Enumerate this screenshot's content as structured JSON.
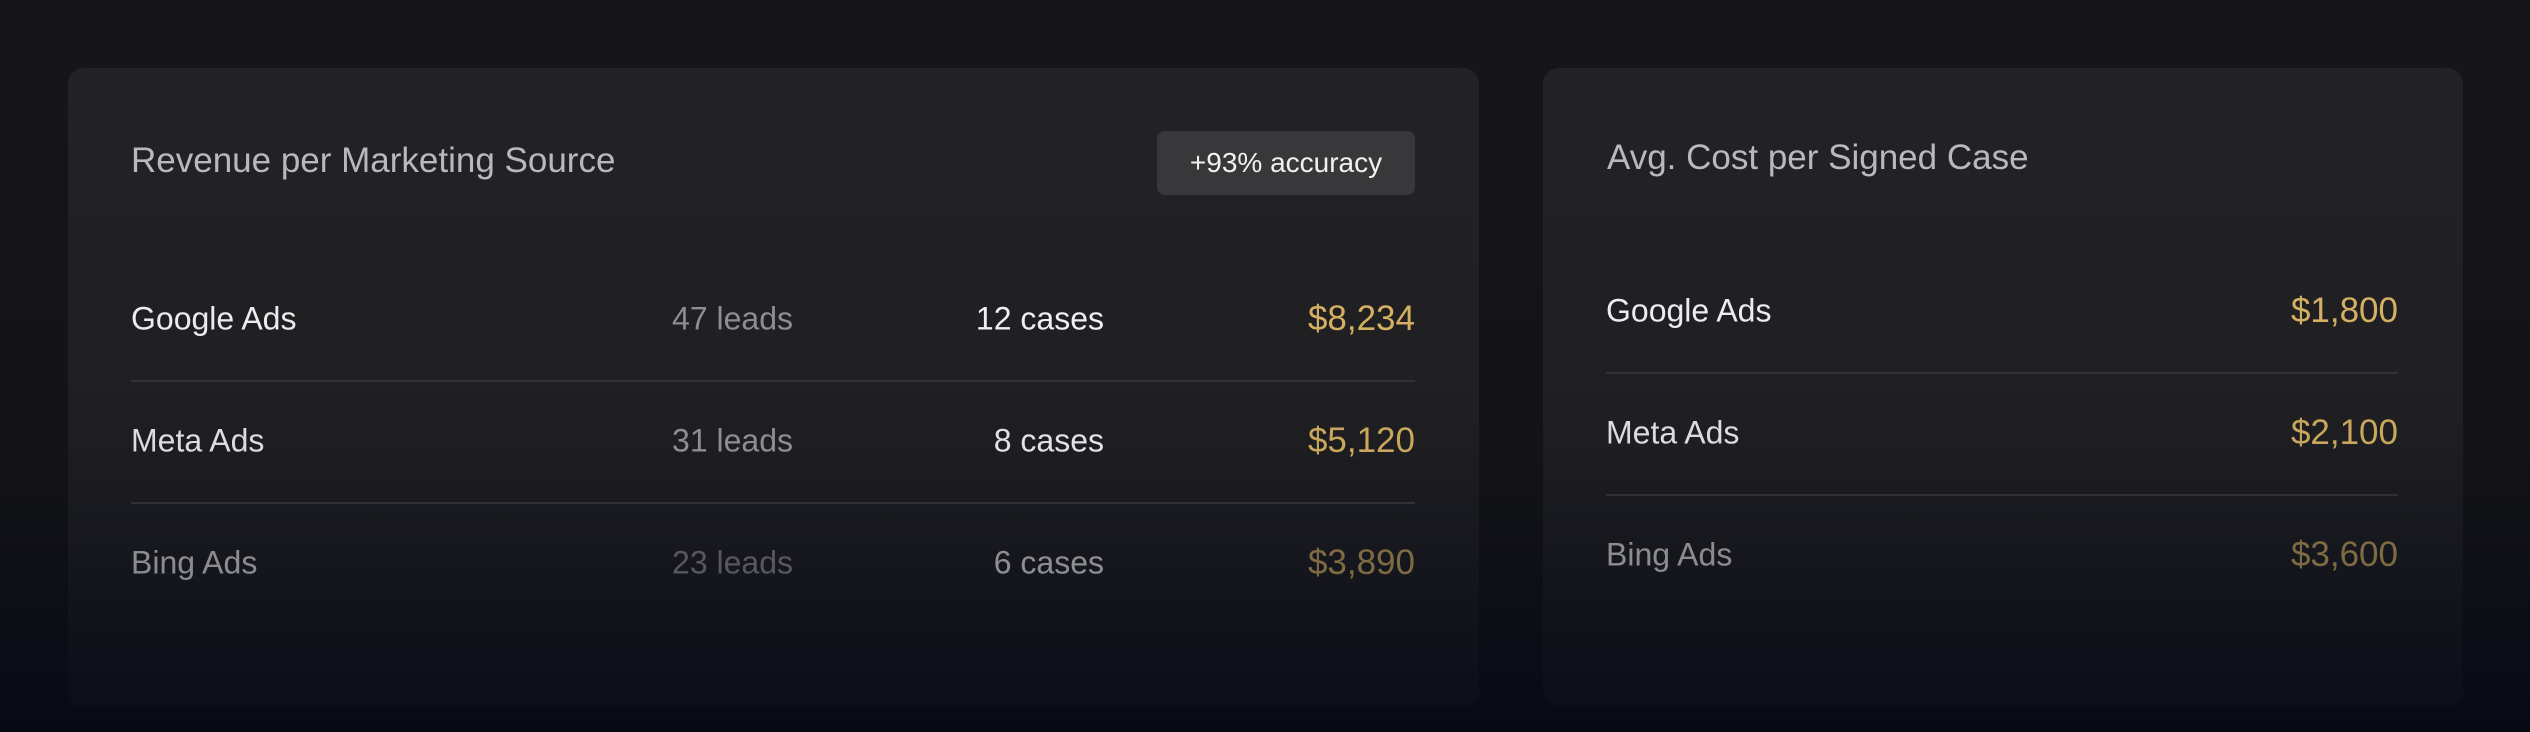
{
  "revenue_card": {
    "title": "Revenue per Marketing Source",
    "badge": "+93% accuracy",
    "rows": [
      {
        "source": "Google Ads",
        "leads": "47 leads",
        "cases": "12 cases",
        "revenue": "$8,234"
      },
      {
        "source": "Meta Ads",
        "leads": "31 leads",
        "cases": "8 cases",
        "revenue": "$5,120"
      },
      {
        "source": "Bing Ads",
        "leads": "23 leads",
        "cases": "6 cases",
        "revenue": "$3,890"
      }
    ]
  },
  "cost_card": {
    "title": "Avg. Cost per Signed Case",
    "rows": [
      {
        "source": "Google Ads",
        "cost": "$1,800"
      },
      {
        "source": "Meta Ads",
        "cost": "$2,100"
      },
      {
        "source": "Bing Ads",
        "cost": "$3,600"
      }
    ]
  },
  "colors": {
    "accent_gold": "#d4b062",
    "card": "#232326",
    "background": "#161618"
  }
}
